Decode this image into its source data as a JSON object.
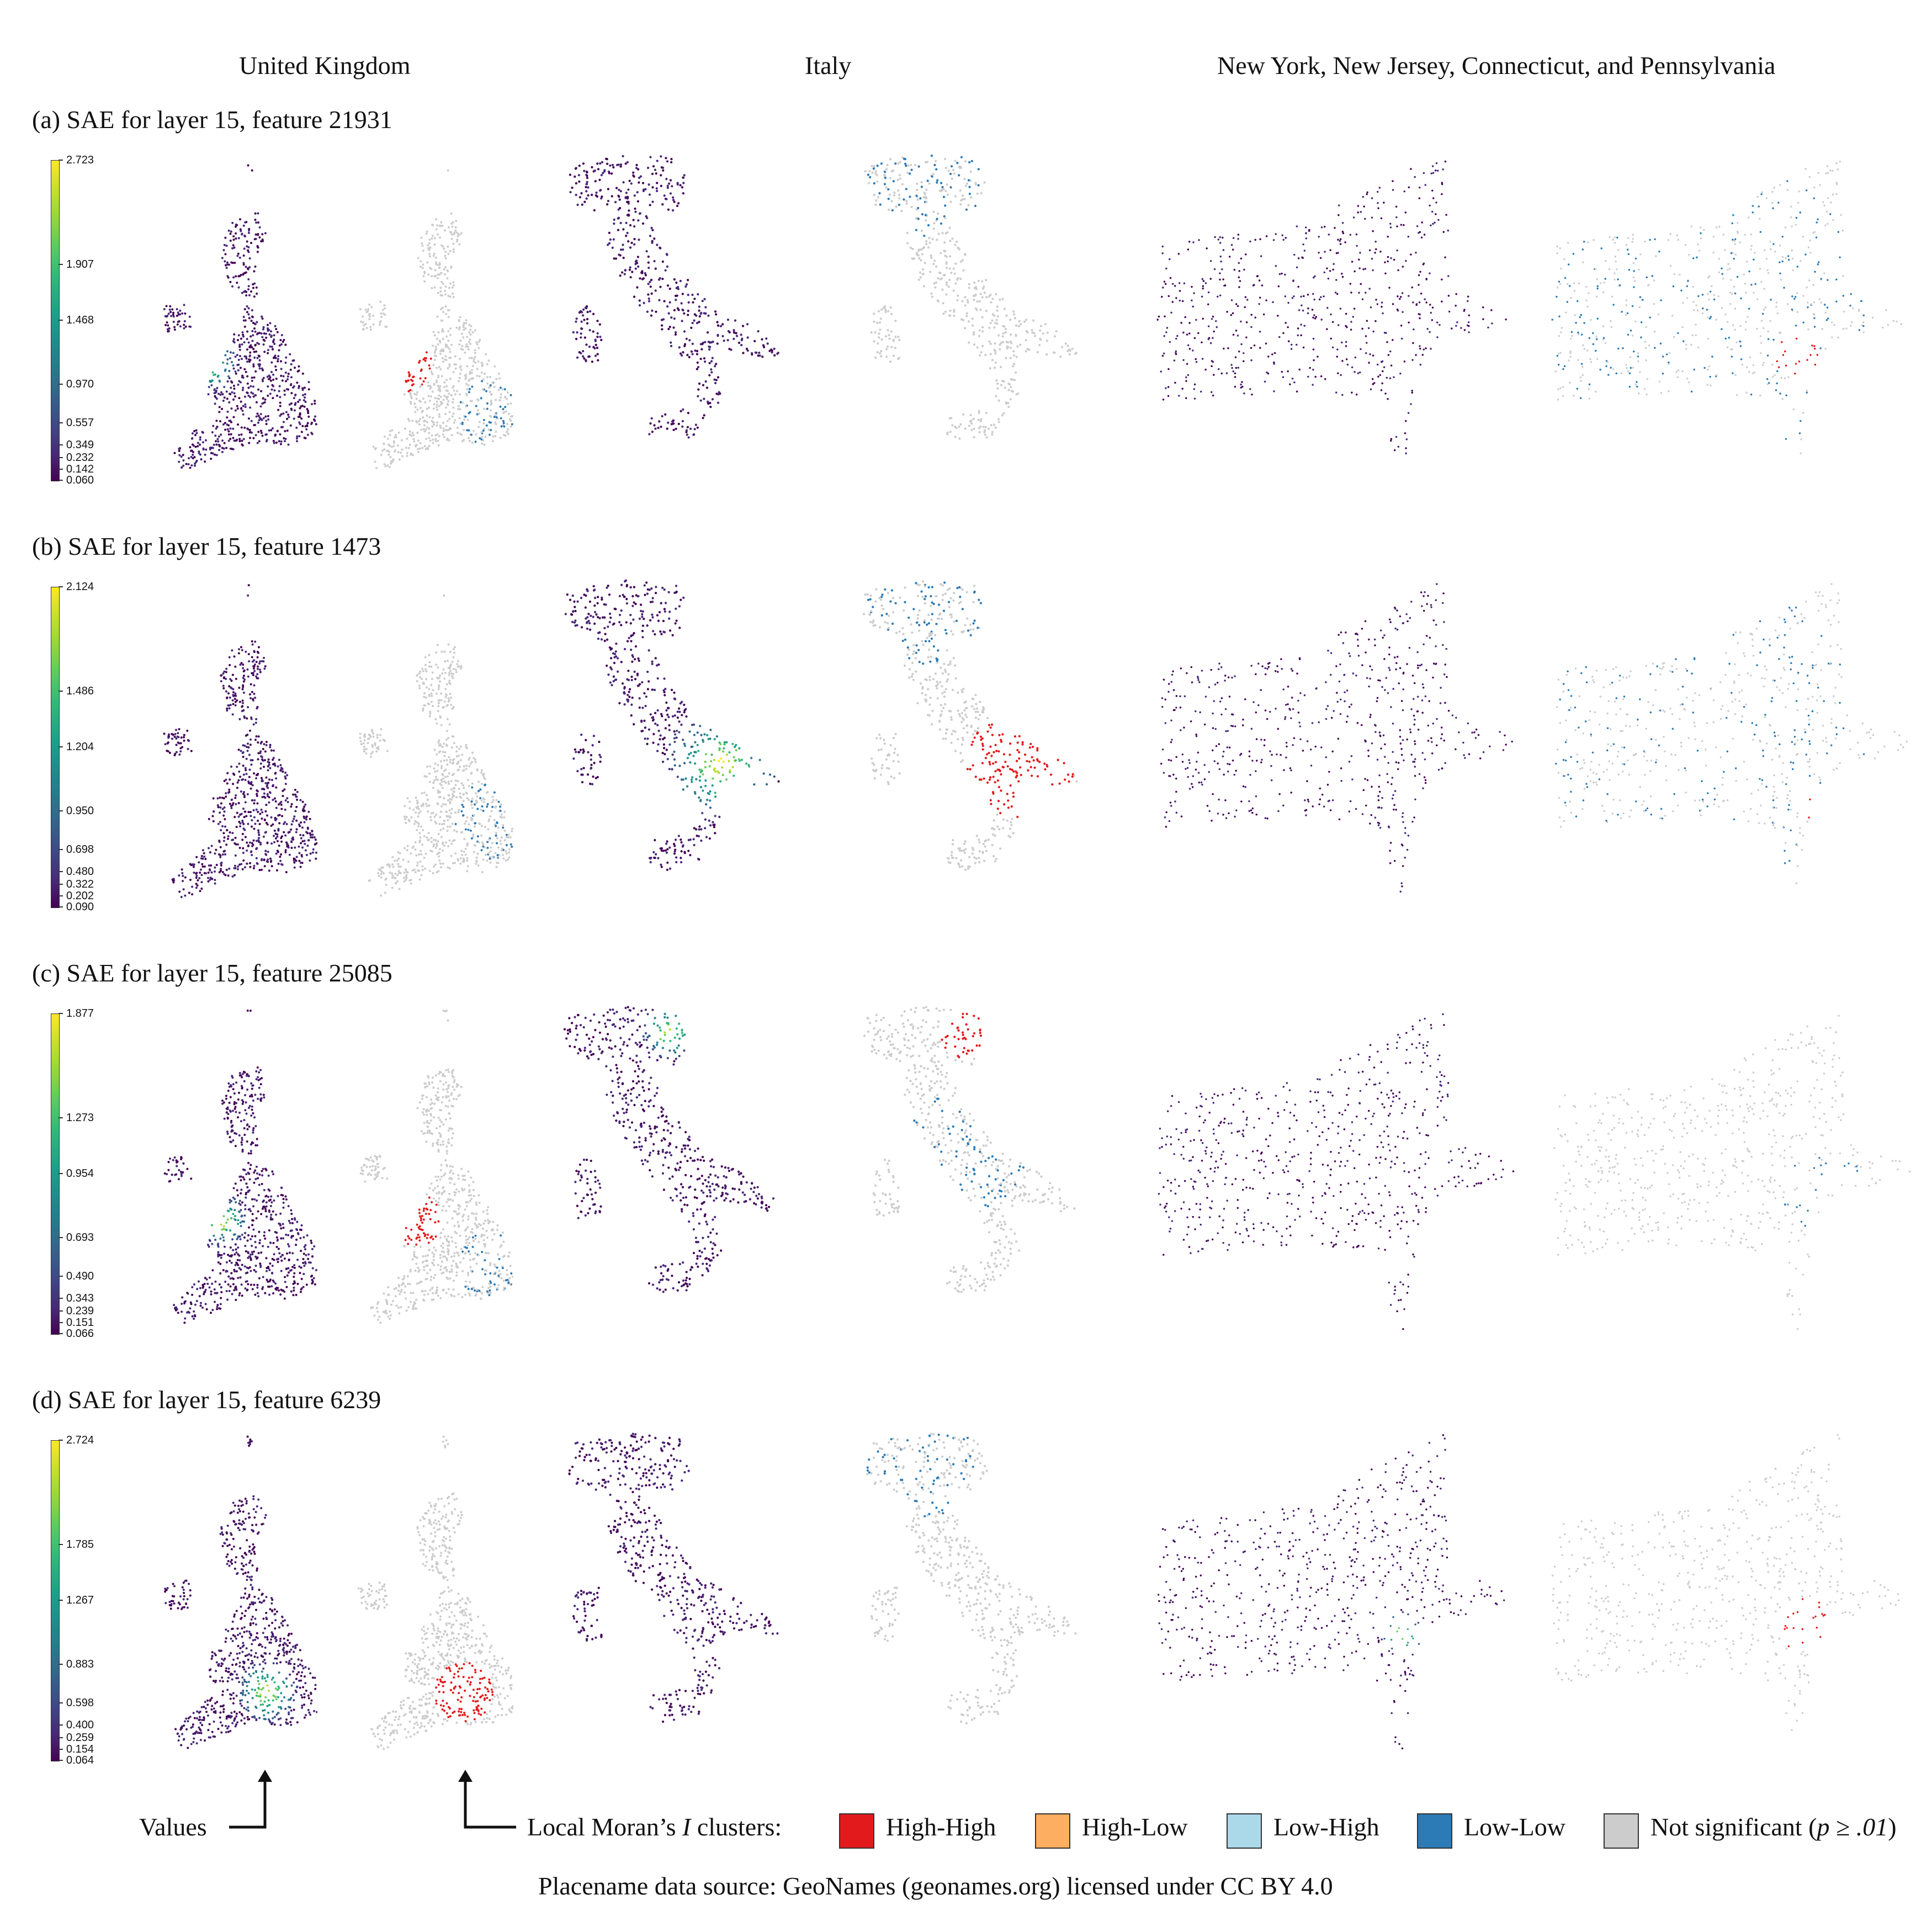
{
  "headers": {
    "uk": "United Kingdom",
    "italy": "Italy",
    "us": "New York, New Jersey, Connecticut, and Pennsylvania"
  },
  "rows": [
    {
      "title": "(a) SAE for layer 15, feature 21931",
      "ticks": [
        "2.723",
        "1.907",
        "1.468",
        "0.970",
        "0.557",
        "0.349",
        "0.232",
        "0.142",
        "0.060"
      ],
      "uk": {
        "hot": "wales",
        "hh": "wales",
        "ll": "southeast"
      },
      "it": {
        "hot": "none",
        "hh": "none",
        "ll": "north"
      },
      "us": {
        "hot": "none",
        "hh": "nyc",
        "ll": "scattered"
      }
    },
    {
      "title": "(b) SAE for layer 15, feature 1473",
      "ticks": [
        "2.124",
        "1.486",
        "1.204",
        "0.950",
        "0.698",
        "0.480",
        "0.322",
        "0.202",
        "0.090"
      ],
      "uk": {
        "hot": "none",
        "hh": "none",
        "ll": "east"
      },
      "it": {
        "hot": "south",
        "hh": "south",
        "ll": "north"
      },
      "us": {
        "hot": "none",
        "hh": "jersey",
        "ll": "scattered"
      }
    },
    {
      "title": "(c) SAE for layer 15, feature 25085",
      "ticks": [
        "1.877",
        "1.273",
        "0.954",
        "0.693",
        "0.490",
        "0.343",
        "0.239",
        "0.151",
        "0.066"
      ],
      "uk": {
        "hot": "midlands",
        "hh": "midlands",
        "ll": "southeast"
      },
      "it": {
        "hot": "northeast",
        "hh": "northeast",
        "ll": "center"
      },
      "us": {
        "hot": "none",
        "hh": "none",
        "ll": "longisland"
      }
    },
    {
      "title": "(d) SAE for layer 15, feature 6239",
      "ticks": [
        "2.724",
        "1.785",
        "1.267",
        "0.883",
        "0.598",
        "0.400",
        "0.259",
        "0.154",
        "0.064"
      ],
      "uk": {
        "hot": "cities",
        "hh": "cities",
        "ll": "none"
      },
      "it": {
        "hot": "none",
        "hh": "none",
        "ll": "north"
      },
      "us": {
        "hot": "nyc",
        "hh": "nycbig",
        "ll": "none"
      }
    }
  ],
  "legend": {
    "values_label": "Values",
    "clusters_label_pre": "Local Moran’s ",
    "clusters_label_italic": "I",
    "clusters_label_post": " clusters:",
    "items": [
      {
        "label": "High-High",
        "color": "#e31a1c"
      },
      {
        "label": "High-Low",
        "color": "#fdae61"
      },
      {
        "label": "Low-High",
        "color": "#abd9e9"
      },
      {
        "label": "Low-Low",
        "color": "#2c7bb6"
      }
    ],
    "ns_label_pre": "Not significant (",
    "ns_label_italic": "p ≥ .01",
    "ns_label_post": ")",
    "ns_color": "#cccccc"
  },
  "source": "Placename data source: GeoNames (geonames.org) licensed under CC BY 4.0",
  "colors": {
    "low": "#440154",
    "high_high": "#e31a1c",
    "low_low": "#2c7bb6",
    "not_significant": "#cccccc"
  }
}
